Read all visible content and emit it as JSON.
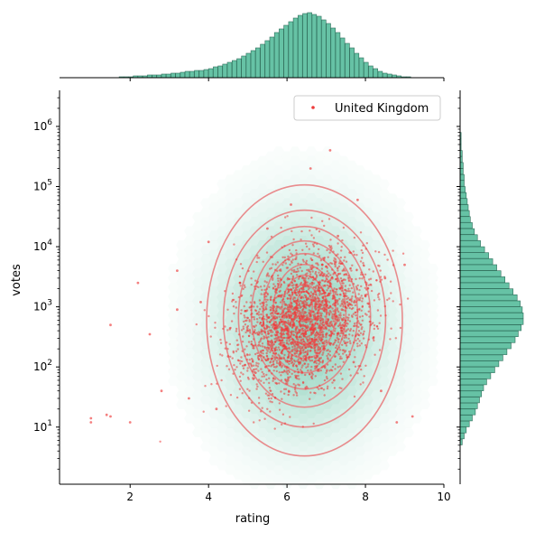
{
  "chart_data": {
    "type": "scatter",
    "title": "",
    "xlabel": "rating",
    "ylabel": "votes",
    "xlim": [
      0.2,
      10
    ],
    "ylim_log10": [
      0.05,
      6.6
    ],
    "y_scale": "log",
    "x_ticks": [
      2,
      4,
      6,
      8,
      10
    ],
    "x_tick_labels": [
      "2",
      "4",
      "6",
      "8",
      "10"
    ],
    "y_ticks": [
      10,
      100,
      1000,
      10000,
      100000,
      1000000
    ],
    "y_tick_labels": [
      "10^1",
      "10^2",
      "10^3",
      "10^4",
      "10^5",
      "10^6"
    ],
    "legend": {
      "placement": "top-right",
      "entries": [
        "United Kingdom"
      ]
    },
    "colors": {
      "hexbin": "#66c2a5",
      "scatter": "#ee3b3b",
      "kde": "#e8787a",
      "hist_fill": "#66c2a5",
      "hist_edge": "#2f6e5b"
    },
    "series": [
      {
        "name": "United Kingdom",
        "points": [
          [
            1.0,
            14
          ],
          [
            1.4,
            16
          ],
          [
            1.0,
            12
          ],
          [
            1.5,
            15
          ],
          [
            2.0,
            12
          ],
          [
            1.5,
            500
          ],
          [
            2.2,
            2500
          ],
          [
            2.5,
            350
          ],
          [
            2.8,
            40
          ],
          [
            3.2,
            4000
          ],
          [
            3.5,
            30
          ],
          [
            3.8,
            1200
          ],
          [
            3.2,
            900
          ],
          [
            4.0,
            12000
          ],
          [
            4.2,
            20
          ],
          [
            4.5,
            150
          ],
          [
            4.8,
            2500
          ],
          [
            5.0,
            400
          ],
          [
            5.2,
            80
          ],
          [
            5.5,
            20000
          ],
          [
            5.6,
            600
          ],
          [
            5.8,
            1500
          ],
          [
            6.0,
            250
          ],
          [
            6.1,
            50000
          ],
          [
            6.2,
            800
          ],
          [
            6.3,
            120
          ],
          [
            6.4,
            3000
          ],
          [
            6.5,
            450
          ],
          [
            6.5,
            1800
          ],
          [
            6.6,
            200000
          ],
          [
            6.7,
            700
          ],
          [
            6.8,
            90
          ],
          [
            6.9,
            5000
          ],
          [
            7.0,
            350
          ],
          [
            7.0,
            1200
          ],
          [
            7.1,
            400000
          ],
          [
            7.2,
            60
          ],
          [
            7.3,
            15000
          ],
          [
            7.4,
            900
          ],
          [
            7.5,
            250
          ],
          [
            7.6,
            8000
          ],
          [
            7.7,
            120
          ],
          [
            7.8,
            60000
          ],
          [
            8.0,
            1500
          ],
          [
            8.2,
            300
          ],
          [
            8.4,
            40
          ],
          [
            8.5,
            3000
          ],
          [
            8.8,
            12
          ],
          [
            9.0,
            5000
          ],
          [
            9.2,
            15
          ]
        ]
      }
    ],
    "marginal_x": {
      "bins": [
        1,
        1.12,
        1.24,
        1.36,
        1.48,
        1.6,
        1.72,
        1.84,
        1.96,
        2.08,
        2.2,
        2.32,
        2.44,
        2.56,
        2.68,
        2.8,
        2.92,
        3.04,
        3.16,
        3.28,
        3.4,
        3.52,
        3.64,
        3.76,
        3.88,
        4.0,
        4.12,
        4.24,
        4.36,
        4.48,
        4.6,
        4.72,
        4.84,
        4.96,
        5.08,
        5.2,
        5.32,
        5.44,
        5.56,
        5.68,
        5.8,
        5.92,
        6.04,
        6.16,
        6.28,
        6.4,
        6.52,
        6.64,
        6.76,
        6.88,
        7.0,
        7.12,
        7.24,
        7.36,
        7.48,
        7.6,
        7.72,
        7.84,
        7.96,
        8.08,
        8.2,
        8.32,
        8.44,
        8.56,
        8.68,
        8.8,
        8.92,
        9.04,
        9.16,
        9.28
      ],
      "counts": [
        0,
        0,
        0,
        0,
        0,
        0,
        1,
        1,
        1,
        2,
        2,
        2,
        3,
        3,
        3,
        4,
        4,
        5,
        5,
        6,
        7,
        7,
        8,
        8,
        9,
        10,
        12,
        13,
        15,
        17,
        19,
        21,
        24,
        27,
        30,
        33,
        37,
        41,
        45,
        50,
        54,
        58,
        62,
        66,
        69,
        71,
        72,
        70,
        68,
        64,
        60,
        55,
        50,
        44,
        38,
        33,
        27,
        22,
        17,
        13,
        10,
        7,
        5,
        4,
        3,
        2,
        1,
        1,
        0,
        0
      ]
    },
    "marginal_y": {
      "bins_log10": [
        0.7,
        0.8,
        0.9,
        1.0,
        1.1,
        1.2,
        1.3,
        1.4,
        1.5,
        1.6,
        1.7,
        1.8,
        1.9,
        2.0,
        2.1,
        2.2,
        2.3,
        2.4,
        2.5,
        2.6,
        2.7,
        2.8,
        2.9,
        3.0,
        3.1,
        3.2,
        3.3,
        3.4,
        3.5,
        3.6,
        3.7,
        3.8,
        3.9,
        4.0,
        4.1,
        4.2,
        4.3,
        4.4,
        4.5,
        4.6,
        4.7,
        4.8,
        4.9,
        5.0,
        5.1,
        5.2,
        5.3,
        5.4,
        5.5,
        5.6,
        5.7,
        5.8,
        5.9,
        6.0
      ],
      "counts": [
        2,
        4,
        6,
        9,
        12,
        15,
        17,
        19,
        21,
        23,
        26,
        30,
        34,
        38,
        42,
        46,
        50,
        54,
        57,
        60,
        62,
        62,
        61,
        59,
        56,
        52,
        48,
        44,
        40,
        36,
        32,
        28,
        24,
        20,
        17,
        14,
        12,
        10,
        9,
        8,
        7,
        6,
        5,
        4,
        4,
        3,
        3,
        2,
        2,
        1,
        1,
        1,
        0,
        0
      ]
    }
  }
}
